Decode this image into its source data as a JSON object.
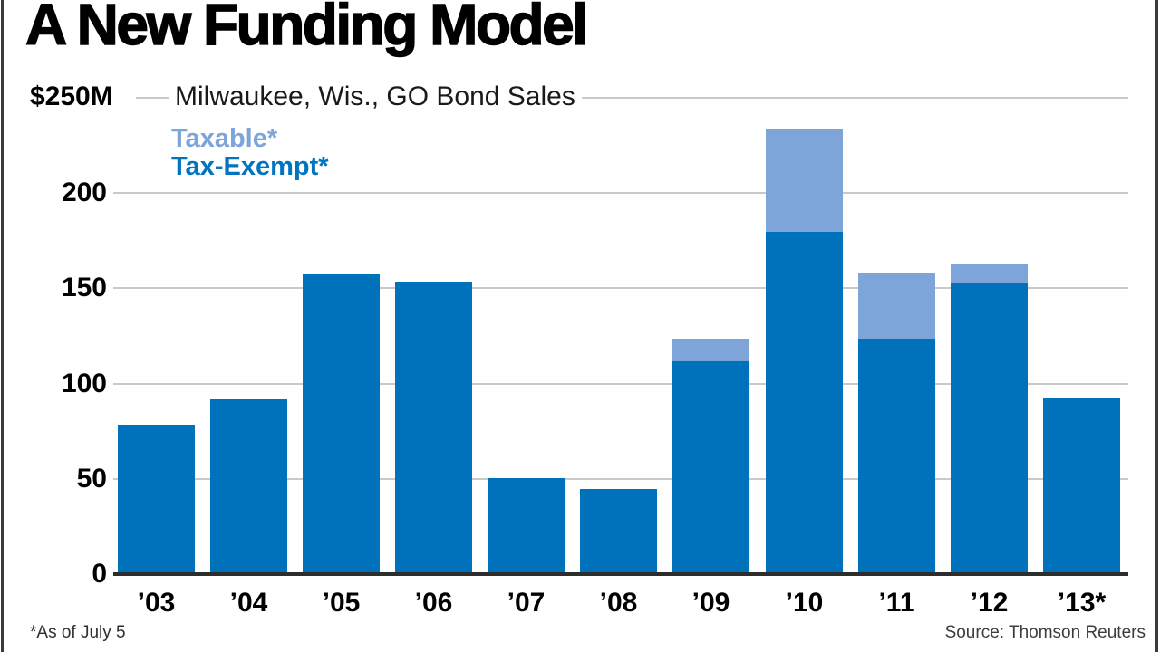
{
  "header": {
    "title": "A New Funding Model",
    "unit_label": "$250M",
    "subtitle": "Milwaukee, Wis., GO Bond Sales"
  },
  "legend": {
    "items": [
      {
        "label": "Taxable*",
        "color": "#7DA5D9"
      },
      {
        "label": "Tax-Exempt*",
        "color": "#0074BE"
      }
    ]
  },
  "footer": {
    "note": "*As of July 5",
    "source": "Source: Thomson Reuters"
  },
  "chart_data": {
    "type": "bar",
    "stacked": true,
    "title": "A New Funding Model",
    "subtitle": "Milwaukee, Wis., GO Bond Sales",
    "unit_label": "$250M",
    "units": "$ millions",
    "categories": [
      "’03",
      "’04",
      "’05",
      "’06",
      "’07",
      "’08",
      "’09",
      "’10",
      "’11",
      "’12",
      "’13*"
    ],
    "series": [
      {
        "name": "Tax-Exempt*",
        "color": "#0072BC",
        "values": [
          78,
          91,
          157,
          153,
          50,
          44,
          111,
          179,
          123,
          152,
          92
        ]
      },
      {
        "name": "Taxable*",
        "color": "#7DA5D9",
        "values": [
          0,
          0,
          0,
          0,
          0,
          0,
          12,
          54,
          34,
          10,
          0
        ]
      }
    ],
    "totals": [
      78,
      91,
      157,
      153,
      50,
      44,
      123,
      233,
      157,
      162,
      92
    ],
    "y_ticks": [
      0,
      50,
      100,
      150,
      200
    ],
    "ylim": [
      0,
      250
    ],
    "grid": true,
    "legend_position": "top-left",
    "footnote": "*As of July 5",
    "source": "Source: Thomson Reuters"
  }
}
